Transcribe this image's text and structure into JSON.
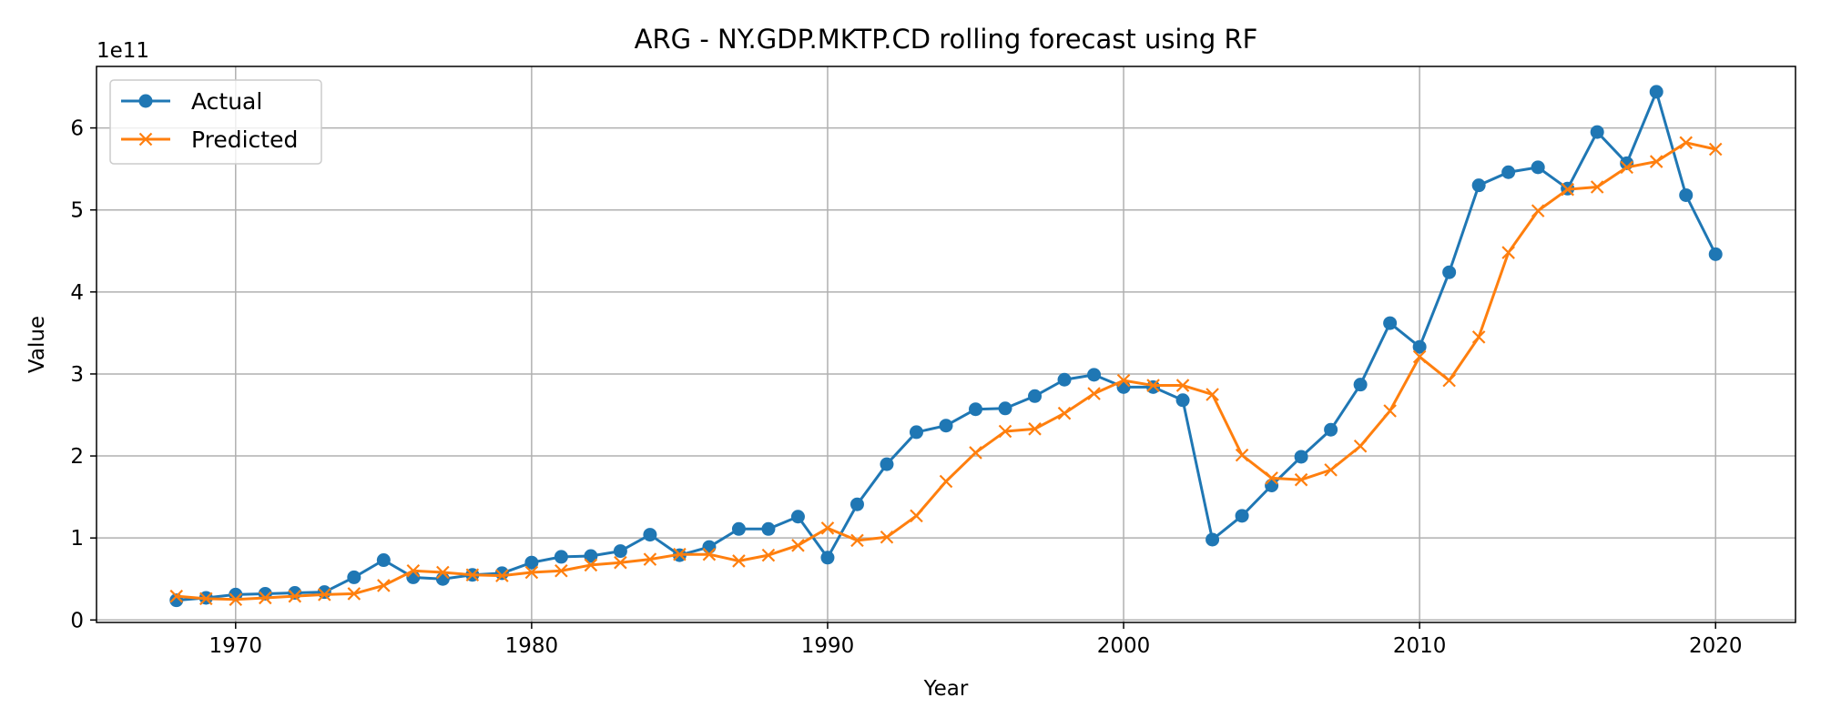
{
  "chart_data": {
    "type": "line",
    "title": "ARG - NY.GDP.MKTP.CD rolling forecast using RF",
    "xlabel": "Year",
    "ylabel": "Value",
    "y_offset_label": "1e11",
    "y_scale": 100000000000.0,
    "xlim": [
      1965.3,
      2022.7
    ],
    "ylim": [
      -0.03,
      6.75
    ],
    "x_ticks": [
      1970,
      1980,
      1990,
      2000,
      2010,
      2020
    ],
    "y_ticks": [
      0,
      1,
      2,
      3,
      4,
      5,
      6
    ],
    "grid": true,
    "legend_position": "top-left",
    "x": [
      1968,
      1969,
      1970,
      1971,
      1972,
      1973,
      1974,
      1975,
      1976,
      1977,
      1978,
      1979,
      1980,
      1981,
      1982,
      1983,
      1984,
      1985,
      1986,
      1987,
      1988,
      1989,
      1990,
      1991,
      1992,
      1993,
      1994,
      1995,
      1996,
      1997,
      1998,
      1999,
      2000,
      2001,
      2002,
      2003,
      2004,
      2005,
      2006,
      2007,
      2008,
      2009,
      2010,
      2011,
      2012,
      2013,
      2014,
      2015,
      2016,
      2017,
      2018,
      2019,
      2020
    ],
    "series": [
      {
        "name": "Actual",
        "color": "#1f77b4",
        "marker": "circle",
        "values": [
          0.24,
          0.27,
          0.31,
          0.32,
          0.33,
          0.34,
          0.52,
          0.73,
          0.52,
          0.5,
          0.55,
          0.57,
          0.7,
          0.77,
          0.78,
          0.84,
          1.04,
          0.79,
          0.89,
          1.11,
          1.11,
          1.26,
          0.76,
          1.41,
          1.9,
          2.29,
          2.37,
          2.57,
          2.58,
          2.73,
          2.93,
          2.99,
          2.84,
          2.84,
          2.68,
          0.98,
          1.27,
          1.64,
          1.99,
          2.32,
          2.87,
          3.62,
          3.33,
          4.24,
          5.3,
          5.46,
          5.52,
          5.26,
          5.95,
          5.57,
          6.44,
          5.18,
          4.46
        ]
      },
      {
        "name": "Predicted",
        "color": "#ff7f0e",
        "marker": "x",
        "values": [
          0.29,
          0.26,
          0.25,
          0.27,
          0.29,
          0.31,
          0.32,
          0.42,
          0.6,
          0.58,
          0.55,
          0.54,
          0.58,
          0.6,
          0.67,
          0.7,
          0.74,
          0.8,
          0.8,
          0.72,
          0.79,
          0.91,
          1.12,
          0.97,
          1.01,
          1.27,
          1.69,
          2.04,
          2.3,
          2.33,
          2.52,
          2.76,
          2.92,
          2.86,
          2.86,
          2.75,
          2.01,
          1.73,
          1.71,
          1.83,
          2.12,
          2.55,
          3.21,
          2.92,
          3.45,
          4.48,
          4.99,
          5.25,
          5.28,
          5.52,
          5.59,
          5.82,
          5.74
        ]
      }
    ]
  }
}
